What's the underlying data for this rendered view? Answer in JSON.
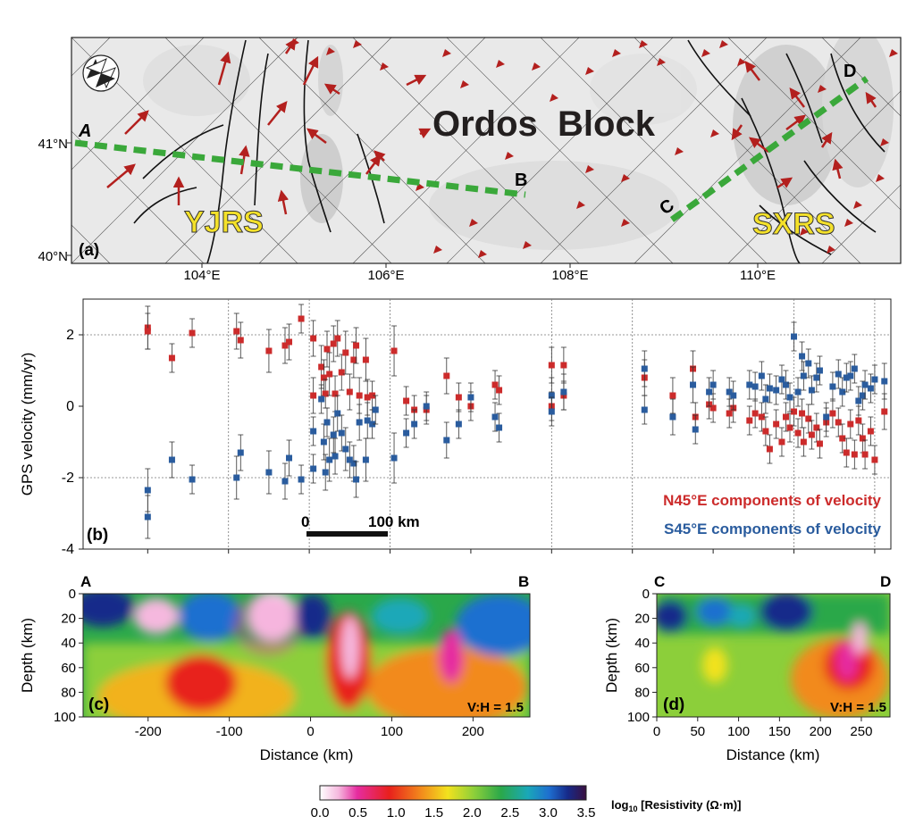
{
  "panel_a": {
    "label": "(a)",
    "block_name": "Ordos  Block",
    "region_left": "YJRS",
    "region_right": "SXRS",
    "profile_labels": [
      "A",
      "B",
      "C",
      "D"
    ],
    "lat_ticks": [
      "41°N",
      "40°N"
    ],
    "lon_ticks": [
      "104°E",
      "106°E",
      "108°E",
      "110°E"
    ],
    "compass_icon": "north-arrow-icon",
    "colors": {
      "profile": "#3aa83a",
      "region_text": "#f4e12a",
      "vectors": "#b3201e"
    }
  },
  "panel_b": {
    "label": "(b)",
    "ylabel": "GPS velocity (mm/yr)",
    "yticks": [
      "2",
      "0",
      "-2",
      "-4"
    ],
    "legend_n45": "N45°E components of velocity",
    "legend_s45": "S45°E components of velocity",
    "scalebar_start": "0",
    "scalebar_end": "100 km",
    "colors": {
      "n45": "#cc2b2b",
      "s45": "#2a5c9e"
    }
  },
  "panel_c": {
    "label": "(c)",
    "ylabel": "Depth (km)",
    "xlabel": "Distance (km)",
    "left_end": "A",
    "right_end": "B",
    "ratio": "V:H = 1.5",
    "yticks": [
      "0",
      "20",
      "40",
      "60",
      "80",
      "100"
    ],
    "xticks": [
      "-200",
      "-100",
      "0",
      "100",
      "200"
    ]
  },
  "panel_d": {
    "label": "(d)",
    "ylabel": "Depth (km)",
    "xlabel": "Distance (km)",
    "left_end": "C",
    "right_end": "D",
    "ratio": "V:H = 1.5",
    "yticks": [
      "0",
      "20",
      "40",
      "60",
      "80",
      "100"
    ],
    "xticks": [
      "0",
      "50",
      "100",
      "150",
      "200",
      "250"
    ]
  },
  "colorbar": {
    "ticks": [
      "0.0",
      "0.5",
      "1.0",
      "1.5",
      "2.0",
      "2.5",
      "3.0",
      "3.5"
    ],
    "label_log": "log",
    "label_sub": "10",
    "label_rest": " [Resistivity (Ω·m)]"
  },
  "chart_data": {
    "type": "scatter",
    "ylabel": "GPS velocity (mm/yr)",
    "ylim": [
      -4,
      3
    ],
    "grid": "dotted",
    "legend_position": "bottom-right",
    "series": [
      {
        "name": "N45°E components of velocity",
        "color": "#cc2b2b",
        "points": [
          [
            -200,
            2.2,
            0.6
          ],
          [
            -200,
            2.1,
            0.5
          ],
          [
            -170,
            1.35,
            0.4
          ],
          [
            -145,
            2.05,
            0.4
          ],
          [
            -90,
            2.1,
            0.5
          ],
          [
            -85,
            1.85,
            0.5
          ],
          [
            -50,
            1.55,
            0.6
          ],
          [
            -30,
            1.7,
            0.5
          ],
          [
            -25,
            1.8,
            0.5
          ],
          [
            -10,
            2.45,
            0.4
          ],
          [
            5,
            1.9,
            0.5
          ],
          [
            5,
            0.3,
            0.5
          ],
          [
            15,
            1.1,
            0.6
          ],
          [
            18,
            0.8,
            0.5
          ],
          [
            20,
            0.35,
            0.4
          ],
          [
            22,
            1.6,
            0.5
          ],
          [
            25,
            0.9,
            0.6
          ],
          [
            30,
            1.75,
            0.5
          ],
          [
            32,
            0.35,
            0.5
          ],
          [
            35,
            1.9,
            0.5
          ],
          [
            40,
            0.95,
            0.5
          ],
          [
            45,
            1.5,
            0.6
          ],
          [
            50,
            0.4,
            0.5
          ],
          [
            55,
            1.3,
            0.5
          ],
          [
            58,
            1.7,
            0.5
          ],
          [
            62,
            0.3,
            0.5
          ],
          [
            70,
            1.3,
            0.6
          ],
          [
            72,
            0.25,
            0.5
          ],
          [
            78,
            0.3,
            0.4
          ],
          [
            105,
            1.55,
            0.7
          ],
          [
            120,
            0.15,
            0.4
          ],
          [
            130,
            -0.1,
            0.4
          ],
          [
            145,
            -0.1,
            0.4
          ],
          [
            170,
            0.85,
            0.5
          ],
          [
            185,
            0.25,
            0.4
          ],
          [
            200,
            0.0,
            0.4
          ],
          [
            230,
            0.6,
            0.4
          ],
          [
            235,
            0.45,
            0.4
          ],
          [
            300,
            1.15,
            0.5
          ],
          [
            300,
            0.0,
            0.4
          ],
          [
            315,
            1.15,
            0.5
          ],
          [
            315,
            0.3,
            0.4
          ],
          [
            415,
            0.8,
            0.5
          ],
          [
            450,
            0.3,
            0.5
          ],
          [
            475,
            1.05,
            0.5
          ],
          [
            478,
            -0.3,
            0.4
          ],
          [
            495,
            0.05,
            0.4
          ],
          [
            500,
            -0.05,
            0.4
          ],
          [
            520,
            -0.2,
            0.4
          ],
          [
            525,
            -0.05,
            0.4
          ],
          [
            545,
            -0.4,
            0.4
          ],
          [
            552,
            -0.2,
            0.4
          ],
          [
            560,
            -0.3,
            0.4
          ],
          [
            565,
            -0.7,
            0.4
          ],
          [
            570,
            -1.2,
            0.4
          ],
          [
            578,
            -0.5,
            0.4
          ],
          [
            585,
            -1.0,
            0.4
          ],
          [
            590,
            -0.3,
            0.4
          ],
          [
            595,
            -0.6,
            0.4
          ],
          [
            600,
            -0.15,
            0.4
          ],
          [
            605,
            -0.75,
            0.4
          ],
          [
            610,
            -0.2,
            0.4
          ],
          [
            612,
            -1.0,
            0.4
          ],
          [
            618,
            -0.35,
            0.4
          ],
          [
            622,
            -0.8,
            0.4
          ],
          [
            628,
            -0.6,
            0.4
          ],
          [
            632,
            -1.05,
            0.4
          ],
          [
            640,
            -0.45,
            0.4
          ],
          [
            648,
            -0.2,
            0.4
          ],
          [
            655,
            -0.45,
            0.4
          ],
          [
            660,
            -0.9,
            0.4
          ],
          [
            665,
            -1.3,
            0.4
          ],
          [
            670,
            -0.5,
            0.4
          ],
          [
            675,
            -1.35,
            0.4
          ],
          [
            680,
            -0.4,
            0.4
          ],
          [
            685,
            -0.9,
            0.4
          ],
          [
            688,
            -1.35,
            0.4
          ],
          [
            695,
            -0.7,
            0.4
          ],
          [
            700,
            -1.5,
            0.4
          ],
          [
            712,
            -0.15,
            0.5
          ]
        ]
      },
      {
        "name": "S45°E components of velocity",
        "color": "#2a5c9e",
        "points": [
          [
            -200,
            -2.35,
            0.6
          ],
          [
            -200,
            -3.1,
            0.6
          ],
          [
            -170,
            -1.5,
            0.5
          ],
          [
            -145,
            -2.05,
            0.4
          ],
          [
            -90,
            -2.0,
            0.6
          ],
          [
            -85,
            -1.3,
            0.5
          ],
          [
            -50,
            -1.85,
            0.6
          ],
          [
            -30,
            -2.1,
            0.5
          ],
          [
            -25,
            -1.45,
            0.5
          ],
          [
            -10,
            -2.05,
            0.4
          ],
          [
            5,
            -1.75,
            0.4
          ],
          [
            5,
            -0.7,
            0.4
          ],
          [
            15,
            0.2,
            0.4
          ],
          [
            18,
            -1.0,
            0.5
          ],
          [
            20,
            -1.85,
            0.5
          ],
          [
            22,
            -0.45,
            0.4
          ],
          [
            25,
            -1.5,
            0.6
          ],
          [
            30,
            -0.8,
            0.5
          ],
          [
            32,
            -1.4,
            0.5
          ],
          [
            35,
            -0.2,
            0.5
          ],
          [
            40,
            -0.75,
            0.5
          ],
          [
            45,
            -1.2,
            0.6
          ],
          [
            50,
            -1.5,
            0.5
          ],
          [
            55,
            -1.6,
            0.5
          ],
          [
            58,
            -2.05,
            0.5
          ],
          [
            62,
            -0.45,
            0.5
          ],
          [
            70,
            -1.5,
            0.6
          ],
          [
            72,
            -0.4,
            0.5
          ],
          [
            78,
            -0.5,
            0.4
          ],
          [
            82,
            -0.1,
            0.4
          ],
          [
            105,
            -1.45,
            0.7
          ],
          [
            120,
            -0.75,
            0.4
          ],
          [
            130,
            -0.5,
            0.4
          ],
          [
            145,
            0.0,
            0.4
          ],
          [
            170,
            -0.95,
            0.5
          ],
          [
            185,
            -0.5,
            0.4
          ],
          [
            200,
            0.25,
            0.4
          ],
          [
            230,
            -0.3,
            0.4
          ],
          [
            235,
            -0.6,
            0.4
          ],
          [
            300,
            0.3,
            0.5
          ],
          [
            300,
            -0.15,
            0.4
          ],
          [
            315,
            0.4,
            0.5
          ],
          [
            415,
            1.05,
            0.5
          ],
          [
            415,
            -0.1,
            0.4
          ],
          [
            450,
            -0.3,
            0.5
          ],
          [
            475,
            0.6,
            0.5
          ],
          [
            478,
            -0.65,
            0.4
          ],
          [
            495,
            0.4,
            0.4
          ],
          [
            500,
            0.6,
            0.4
          ],
          [
            520,
            0.4,
            0.4
          ],
          [
            525,
            0.3,
            0.4
          ],
          [
            545,
            0.6,
            0.4
          ],
          [
            552,
            0.55,
            0.4
          ],
          [
            560,
            0.85,
            0.4
          ],
          [
            565,
            0.2,
            0.4
          ],
          [
            570,
            0.5,
            0.4
          ],
          [
            578,
            0.45,
            0.4
          ],
          [
            585,
            0.75,
            0.4
          ],
          [
            590,
            0.6,
            0.4
          ],
          [
            595,
            0.25,
            0.4
          ],
          [
            600,
            1.95,
            0.4
          ],
          [
            605,
            0.4,
            0.4
          ],
          [
            610,
            1.4,
            0.4
          ],
          [
            612,
            0.85,
            0.4
          ],
          [
            618,
            1.2,
            0.4
          ],
          [
            622,
            0.45,
            0.4
          ],
          [
            628,
            0.8,
            0.4
          ],
          [
            632,
            1.0,
            0.4
          ],
          [
            640,
            -0.3,
            0.4
          ],
          [
            648,
            0.55,
            0.4
          ],
          [
            655,
            0.9,
            0.4
          ],
          [
            660,
            0.4,
            0.4
          ],
          [
            665,
            0.8,
            0.4
          ],
          [
            670,
            0.85,
            0.4
          ],
          [
            675,
            1.05,
            0.4
          ],
          [
            680,
            0.15,
            0.4
          ],
          [
            685,
            0.3,
            0.4
          ],
          [
            688,
            0.6,
            0.4
          ],
          [
            695,
            0.5,
            0.4
          ],
          [
            700,
            0.75,
            0.4
          ],
          [
            712,
            0.7,
            0.5
          ]
        ]
      }
    ]
  }
}
